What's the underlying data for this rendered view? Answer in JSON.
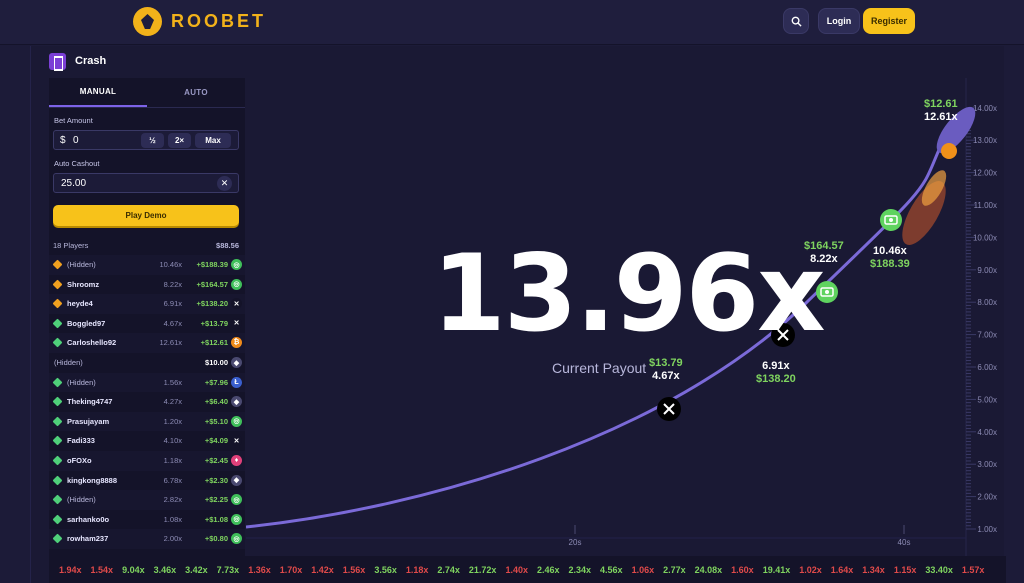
{
  "header": {
    "brand": "ROOBET",
    "login_label": "Login",
    "register_label": "Register"
  },
  "game": {
    "title": "Crash"
  },
  "panel": {
    "tabs": [
      "MANUAL",
      "AUTO"
    ],
    "bet_amount_label": "Bet Amount",
    "currency_symbol": "$",
    "bet_amount_value": "0",
    "half_label": "½",
    "double_label": "2×",
    "max_label": "Max",
    "auto_cashout_label": "Auto Cashout",
    "auto_cashout_value": "25.00",
    "play_label": "Play Demo",
    "players_count": "18 Players",
    "players_total": "$88.56"
  },
  "players": [
    {
      "name": "(Hidden)",
      "multiplier": "10.46x",
      "win": "+$188.39",
      "gem_color": "#f0a020",
      "coin": "green"
    },
    {
      "name": "Shroomz",
      "multiplier": "8.22x",
      "win": "+$164.57",
      "gem_color": "#f0a020",
      "coin": "green"
    },
    {
      "name": "heyde4",
      "multiplier": "6.91x",
      "win": "+$138.20",
      "gem_color": "#f0a020",
      "coin": "x"
    },
    {
      "name": "Boggled97",
      "multiplier": "4.67x",
      "win": "+$13.79",
      "gem_color": "#4fd07a",
      "coin": "x"
    },
    {
      "name": "Carloshello92",
      "multiplier": "12.61x",
      "win": "+$12.61",
      "gem_color": "#4fd07a",
      "coin": "orange"
    },
    {
      "name": "(Hidden)",
      "multiplier": "",
      "win": "$10.00",
      "gem_color": "",
      "coin": "grey"
    },
    {
      "name": "(Hidden)",
      "multiplier": "1.56x",
      "win": "+$7.96",
      "gem_color": "#4fd07a",
      "coin": "blue"
    },
    {
      "name": "Theking4747",
      "multiplier": "4.27x",
      "win": "+$6.40",
      "gem_color": "#4fd07a",
      "coin": "grey"
    },
    {
      "name": "Prasujayam",
      "multiplier": "1.20x",
      "win": "+$5.10",
      "gem_color": "#4fd07a",
      "coin": "green"
    },
    {
      "name": "Fadi333",
      "multiplier": "4.10x",
      "win": "+$4.09",
      "gem_color": "#4fd07a",
      "coin": "x"
    },
    {
      "name": "oFOXo",
      "multiplier": "1.18x",
      "win": "+$2.45",
      "gem_color": "#4fd07a",
      "coin": "pink"
    },
    {
      "name": "kingkong8888",
      "multiplier": "6.78x",
      "win": "+$2.30",
      "gem_color": "#4fd07a",
      "coin": "grey"
    },
    {
      "name": "(Hidden)",
      "multiplier": "2.82x",
      "win": "+$2.25",
      "gem_color": "#4fd07a",
      "coin": "green"
    },
    {
      "name": "sarhanko0o",
      "multiplier": "1.08x",
      "win": "+$1.08",
      "gem_color": "#4fd07a",
      "coin": "green"
    },
    {
      "name": "rowham237",
      "multiplier": "2.00x",
      "win": "+$0.80",
      "gem_color": "#4fd07a",
      "coin": "green"
    }
  ],
  "chart": {
    "current_multiplier": "13.96x",
    "current_label": "Current Payout",
    "y_ticks": [
      "1.00x",
      "2.00x",
      "3.00x",
      "4.00x",
      "5.00x",
      "6.00x",
      "7.00x",
      "8.00x",
      "9.00x",
      "10.00x",
      "11.00x",
      "12.00x",
      "13.00x",
      "14.00x"
    ],
    "x_ticks": [
      "20s",
      "40s"
    ],
    "cashouts": [
      {
        "amount": "$13.79",
        "multiplier": "4.67x",
        "icon": "x"
      },
      {
        "amount": "$138.20",
        "multiplier": "6.91x",
        "icon": "x"
      },
      {
        "amount": "$164.57",
        "multiplier": "8.22x",
        "icon": "cash"
      },
      {
        "amount": "$188.39",
        "multiplier": "10.46x",
        "icon": "cash"
      },
      {
        "amount": "$12.61",
        "multiplier": "12.61x",
        "icon": "rocket"
      }
    ]
  },
  "history": [
    {
      "v": "1.94x",
      "c": "#e04a4a"
    },
    {
      "v": "1.54x",
      "c": "#e04a4a"
    },
    {
      "v": "9.04x",
      "c": "#7fd45f"
    },
    {
      "v": "3.46x",
      "c": "#7fd45f"
    },
    {
      "v": "3.42x",
      "c": "#7fd45f"
    },
    {
      "v": "7.73x",
      "c": "#7fd45f"
    },
    {
      "v": "1.36x",
      "c": "#e04a4a"
    },
    {
      "v": "1.70x",
      "c": "#e04a4a"
    },
    {
      "v": "1.42x",
      "c": "#e04a4a"
    },
    {
      "v": "1.56x",
      "c": "#e04a4a"
    },
    {
      "v": "3.56x",
      "c": "#7fd45f"
    },
    {
      "v": "1.18x",
      "c": "#e04a4a"
    },
    {
      "v": "2.74x",
      "c": "#7fd45f"
    },
    {
      "v": "21.72x",
      "c": "#7fd45f"
    },
    {
      "v": "1.40x",
      "c": "#e04a4a"
    },
    {
      "v": "2.46x",
      "c": "#7fd45f"
    },
    {
      "v": "2.34x",
      "c": "#7fd45f"
    },
    {
      "v": "4.56x",
      "c": "#7fd45f"
    },
    {
      "v": "1.06x",
      "c": "#e04a4a"
    },
    {
      "v": "2.77x",
      "c": "#7fd45f"
    },
    {
      "v": "24.08x",
      "c": "#7fd45f"
    },
    {
      "v": "1.60x",
      "c": "#e04a4a"
    },
    {
      "v": "19.41x",
      "c": "#7fd45f"
    },
    {
      "v": "1.02x",
      "c": "#e04a4a"
    },
    {
      "v": "1.64x",
      "c": "#e04a4a"
    },
    {
      "v": "1.34x",
      "c": "#e04a4a"
    },
    {
      "v": "1.15x",
      "c": "#e04a4a"
    },
    {
      "v": "33.40x",
      "c": "#7fd45f"
    },
    {
      "v": "1.57x",
      "c": "#e04a4a"
    }
  ]
}
